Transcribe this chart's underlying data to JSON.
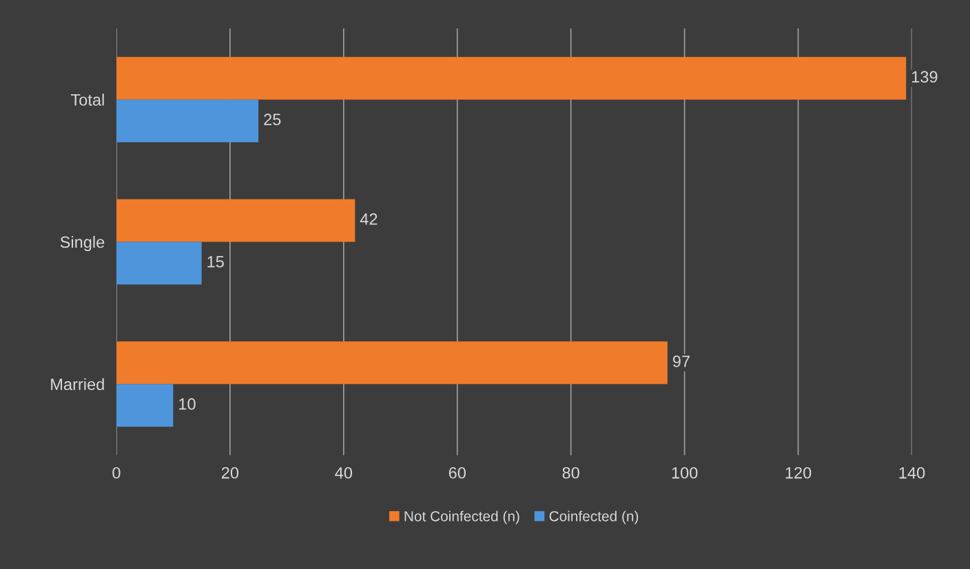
{
  "chart_data": {
    "type": "bar",
    "orientation": "horizontal",
    "categories": [
      "Total",
      "Single",
      "Married"
    ],
    "series": [
      {
        "name": "Not Coinfected (n)",
        "color": "#f07b2a",
        "values": [
          139,
          42,
          97
        ]
      },
      {
        "name": "Coinfected (n)",
        "color": "#4f95dc",
        "values": [
          25,
          15,
          10
        ]
      }
    ],
    "xlim": [
      0,
      140
    ],
    "xticks": [
      0,
      20,
      40,
      60,
      80,
      100,
      120,
      140
    ],
    "grid": "x",
    "legend": "bottom",
    "data_labels": true
  }
}
